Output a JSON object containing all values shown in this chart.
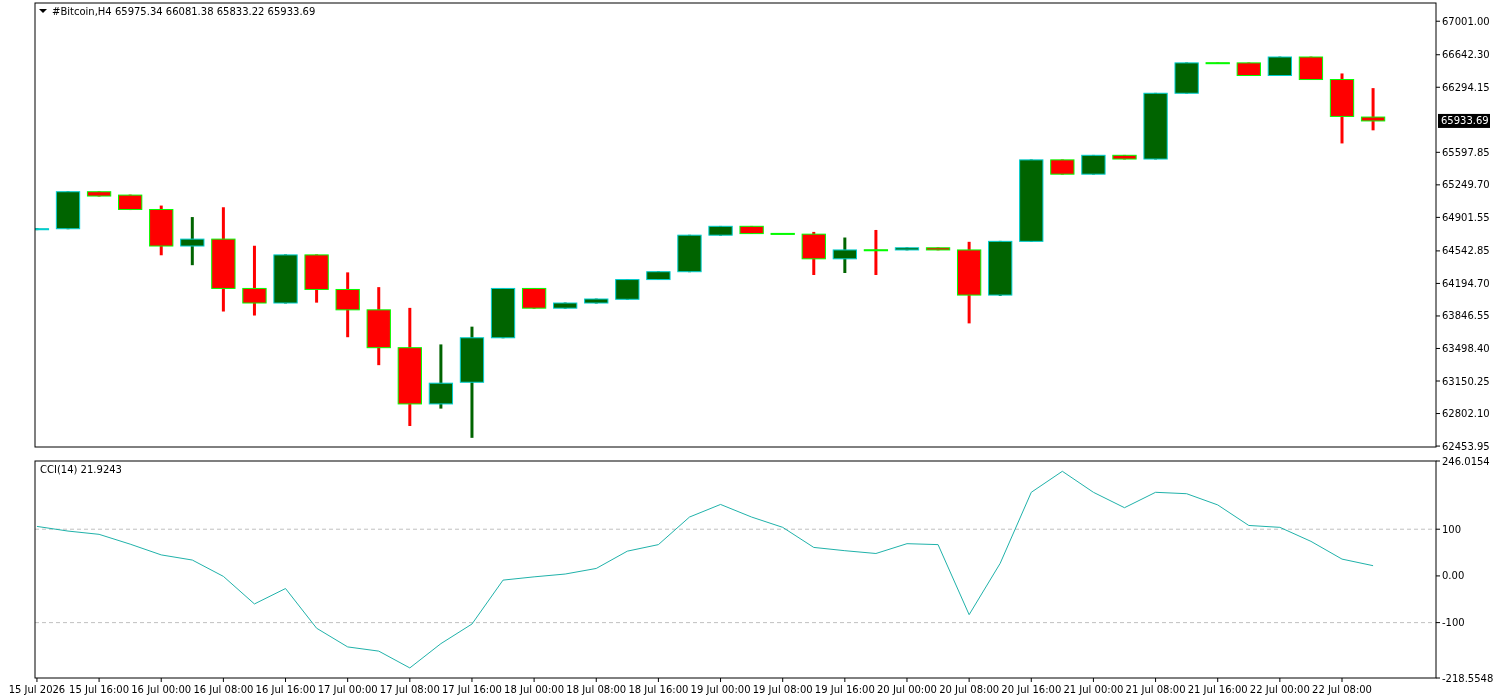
{
  "chart_data": [
    {
      "type": "candlestick",
      "title": "#Bitcoin,H4  65975.34 66081.38 65833.22 65933.69",
      "tick_labels": "y",
      "x": [
        "2026-07-15T08:00",
        "2026-07-15T12:00",
        "2026-07-15T16:00",
        "2026-07-15T20:00",
        "2026-07-16T00:00",
        "2026-07-16T04:00",
        "2026-07-16T08:00",
        "2026-07-16T12:00",
        "2026-07-16T16:00",
        "2026-07-16T20:00",
        "2026-07-17T00:00",
        "2026-07-17T04:00",
        "2026-07-17T08:00",
        "2026-07-17T12:00",
        "2026-07-17T16:00",
        "2026-07-17T20:00",
        "2026-07-18T00:00",
        "2026-07-18T04:00",
        "2026-07-18T08:00",
        "2026-07-18T12:00",
        "2026-07-18T16:00",
        "2026-07-18T20:00",
        "2026-07-19T00:00",
        "2026-07-19T04:00",
        "2026-07-19T08:00",
        "2026-07-19T12:00",
        "2026-07-19T16:00",
        "2026-07-19T20:00",
        "2026-07-20T00:00",
        "2026-07-20T04:00",
        "2026-07-20T08:00",
        "2026-07-20T12:00",
        "2026-07-20T16:00",
        "2026-07-20T20:00",
        "2026-07-21T00:00",
        "2026-07-21T04:00",
        "2026-07-21T08:00",
        "2026-07-21T12:00",
        "2026-07-21T16:00",
        "2026-07-21T20:00",
        "2026-07-22T00:00",
        "2026-07-22T04:00",
        "2026-07-22T08:00",
        "2026-07-22T12:00"
      ],
      "ohlc": [
        [
          64770,
          64785,
          64765,
          64780
        ],
        [
          64780,
          65180,
          64775,
          65176
        ],
        [
          65176,
          65180,
          65125,
          65130
        ],
        [
          65140,
          65145,
          64980,
          64986
        ],
        [
          64986,
          65028,
          64496,
          64595
        ],
        [
          64595,
          64905,
          64390,
          64669
        ],
        [
          64669,
          65010,
          63894,
          64141
        ],
        [
          64141,
          64598,
          63851,
          63985
        ],
        [
          63985,
          64505,
          63980,
          64500
        ],
        [
          64500,
          64505,
          63989,
          64130
        ],
        [
          64130,
          64313,
          63619,
          63912
        ],
        [
          63912,
          64155,
          63320,
          63507
        ],
        [
          63507,
          63933,
          62669,
          62905
        ],
        [
          62905,
          63542,
          62855,
          63127
        ],
        [
          63137,
          63732,
          62542,
          63613
        ],
        [
          63613,
          64145,
          63608,
          64141
        ],
        [
          64141,
          64145,
          63925,
          63930
        ],
        [
          63930,
          63990,
          63925,
          63985
        ],
        [
          63985,
          64032,
          63980,
          64028
        ],
        [
          64025,
          64240,
          64020,
          64236
        ],
        [
          64236,
          64325,
          64232,
          64320
        ],
        [
          64320,
          64715,
          64315,
          64711
        ],
        [
          64711,
          64810,
          64706,
          64806
        ],
        [
          64806,
          64810,
          64724,
          64728
        ],
        [
          64730,
          64732,
          64724,
          64728
        ],
        [
          64722,
          64746,
          64285,
          64458
        ],
        [
          64458,
          64686,
          64306,
          64553
        ],
        [
          64555,
          64767,
          64285,
          64553
        ],
        [
          64553,
          64580,
          64549,
          64576
        ],
        [
          64576,
          64580,
          64549,
          64553
        ],
        [
          64553,
          64640,
          63767,
          64070
        ],
        [
          64070,
          64650,
          64060,
          64645
        ],
        [
          64645,
          65521,
          64640,
          65517
        ],
        [
          65517,
          65521,
          65360,
          65364
        ],
        [
          65364,
          65570,
          65360,
          65566
        ],
        [
          65566,
          65570,
          65522,
          65526
        ],
        [
          65526,
          66234,
          65522,
          66230
        ],
        [
          66230,
          66559,
          66226,
          66555
        ],
        [
          66557,
          66559,
          66551,
          66555
        ],
        [
          66555,
          66559,
          66416,
          66420
        ],
        [
          66420,
          66622,
          66416,
          66618
        ],
        [
          66618,
          66622,
          66373,
          66377
        ],
        [
          66377,
          66442,
          65693,
          65982
        ],
        [
          65975.34,
          66285,
          65833.22,
          65933.69
        ]
      ],
      "colors": [
        "#006400",
        "#006400",
        "#ff0000",
        "#ff0000",
        "#ff0000",
        "#006400",
        "#ff0000",
        "#ff0000",
        "#006400",
        "#ff0000",
        "#ff0000",
        "#ff0000",
        "#ff0000",
        "#006400",
        "#006400",
        "#006400",
        "#ff0000",
        "#006400",
        "#006400",
        "#006400",
        "#006400",
        "#006400",
        "#006400",
        "#ff0000",
        "#ff0000",
        "#ff0000",
        "#006400",
        "#ff0000",
        "#006400",
        "#ff0000",
        "#ff0000",
        "#006400",
        "#006400",
        "#ff0000",
        "#006400",
        "#ff0000",
        "#006400",
        "#006400",
        "#ff0000",
        "#ff0000",
        "#006400",
        "#ff0000",
        "#ff0000",
        "#ff0000"
      ],
      "xlim": [
        "2026-07-15T07:45",
        "2026-07-22T20:06"
      ],
      "ylim": [
        62444,
        67196
      ],
      "yticks": [
        {
          "value": 67001,
          "label": "67001.00"
        },
        {
          "value": 66642.3,
          "label": "66642.30"
        },
        {
          "value": 66294.15,
          "label": "66294.15"
        },
        {
          "value": 65597.85,
          "label": "65597.85"
        },
        {
          "value": 65249.7,
          "label": "65249.70"
        },
        {
          "value": 64901.55,
          "label": "64901.55"
        },
        {
          "value": 64542.85,
          "label": "64542.85"
        },
        {
          "value": 64194.7,
          "label": "64194.70"
        },
        {
          "value": 63846.55,
          "label": "63846.55"
        },
        {
          "value": 63498.4,
          "label": "63498.40"
        },
        {
          "value": 63150.25,
          "label": "63150.25"
        },
        {
          "value": 62802.1,
          "label": "62802.10"
        },
        {
          "value": 62453.95,
          "label": "62453.95"
        }
      ],
      "annotations": [
        "65933.69"
      ]
    },
    {
      "type": "line",
      "title": "CCI(14) 21.9243",
      "x": [
        "2026-07-15T08:00",
        "2026-07-15T12:00",
        "2026-07-15T16:00",
        "2026-07-15T20:00",
        "2026-07-16T00:00",
        "2026-07-16T04:00",
        "2026-07-16T08:00",
        "2026-07-16T12:00",
        "2026-07-16T16:00",
        "2026-07-16T20:00",
        "2026-07-17T00:00",
        "2026-07-17T04:00",
        "2026-07-17T08:00",
        "2026-07-17T12:00",
        "2026-07-17T16:00",
        "2026-07-17T20:00",
        "2026-07-18T00:00",
        "2026-07-18T04:00",
        "2026-07-18T08:00",
        "2026-07-18T12:00",
        "2026-07-18T16:00",
        "2026-07-18T20:00",
        "2026-07-19T00:00",
        "2026-07-19T04:00",
        "2026-07-19T08:00",
        "2026-07-19T12:00",
        "2026-07-19T16:00",
        "2026-07-19T20:00",
        "2026-07-20T00:00",
        "2026-07-20T04:00",
        "2026-07-20T08:00",
        "2026-07-20T12:00",
        "2026-07-20T16:00",
        "2026-07-20T20:00",
        "2026-07-21T00:00",
        "2026-07-21T04:00",
        "2026-07-21T08:00",
        "2026-07-21T12:00",
        "2026-07-21T16:00",
        "2026-07-21T20:00",
        "2026-07-22T00:00",
        "2026-07-22T04:00",
        "2026-07-22T08:00",
        "2026-07-22T12:00"
      ],
      "series": [
        {
          "color": "#20b2aa",
          "values": [
            106,
            96,
            89,
            68,
            45,
            34,
            -1,
            -60,
            -27,
            -112,
            -152,
            -161,
            -197,
            -145,
            -103,
            -9,
            -2,
            4,
            16,
            53,
            67,
            126,
            153,
            126,
            104,
            61,
            54,
            48,
            69,
            67,
            -83,
            27,
            179,
            224,
            179,
            146,
            179,
            176,
            152,
            108,
            104,
            74,
            36,
            21.9243
          ]
        }
      ],
      "xlim": [
        "2026-07-15T07:45",
        "2026-07-22T20:06"
      ],
      "xticks": [
        {
          "value": "2026-07-15T08:00",
          "label": "15 Jul 2026"
        },
        {
          "value": "2026-07-15T16:00",
          "label": "15 Jul 16:00"
        },
        {
          "value": "2026-07-16T00:00",
          "label": "16 Jul 00:00"
        },
        {
          "value": "2026-07-16T08:00",
          "label": "16 Jul 08:00"
        },
        {
          "value": "2026-07-16T16:00",
          "label": "16 Jul 16:00"
        },
        {
          "value": "2026-07-17T00:00",
          "label": "17 Jul 00:00"
        },
        {
          "value": "2026-07-17T08:00",
          "label": "17 Jul 08:00"
        },
        {
          "value": "2026-07-17T16:00",
          "label": "17 Jul 16:00"
        },
        {
          "value": "2026-07-18T00:00",
          "label": "18 Jul 00:00"
        },
        {
          "value": "2026-07-18T08:00",
          "label": "18 Jul 08:00"
        },
        {
          "value": "2026-07-18T16:00",
          "label": "18 Jul 16:00"
        },
        {
          "value": "2026-07-19T00:00",
          "label": "19 Jul 00:00"
        },
        {
          "value": "2026-07-19T08:00",
          "label": "19 Jul 08:00"
        },
        {
          "value": "2026-07-19T16:00",
          "label": "19 Jul 16:00"
        },
        {
          "value": "2026-07-20T00:00",
          "label": "20 Jul 00:00"
        },
        {
          "value": "2026-07-20T08:00",
          "label": "20 Jul 08:00"
        },
        {
          "value": "2026-07-20T16:00",
          "label": "20 Jul 16:00"
        },
        {
          "value": "2026-07-21T00:00",
          "label": "21 Jul 00:00"
        },
        {
          "value": "2026-07-21T08:00",
          "label": "21 Jul 08:00"
        },
        {
          "value": "2026-07-21T16:00",
          "label": "21 Jul 16:00"
        },
        {
          "value": "2026-07-22T00:00",
          "label": "22 Jul 00:00"
        },
        {
          "value": "2026-07-22T08:00",
          "label": "22 Jul 08:00"
        }
      ],
      "ylim": [
        -218.5548,
        246.0154
      ],
      "yticks": [
        246.0154,
        100,
        {
          "value": 0,
          "label": "0.00"
        },
        -100,
        -218.5548
      ],
      "ref_lines": [
        {
          "axis": "y",
          "value": 100,
          "line_style": "dashed",
          "color": "#c0c0c0"
        },
        {
          "axis": "y",
          "value": -100,
          "line_style": "dashed",
          "color": "#c0c0c0"
        }
      ]
    }
  ]
}
